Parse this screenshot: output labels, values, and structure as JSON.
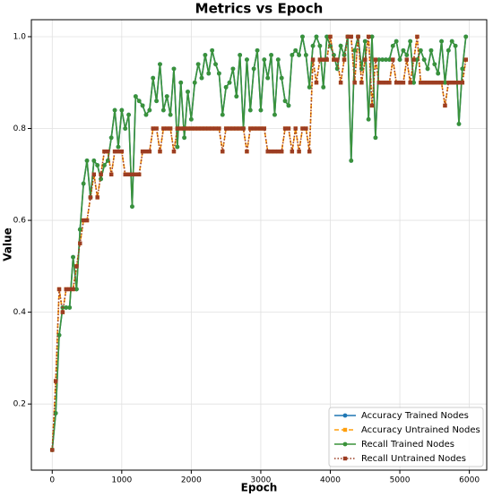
{
  "chart_data": {
    "type": "line",
    "title": "Metrics vs Epoch",
    "x_label": "Epoch",
    "y_label": "Value",
    "grid": true,
    "legend": "lower right",
    "xlim": [
      -300,
      6250
    ],
    "ylim": [
      0.056,
      1.037
    ],
    "xticks": [
      0,
      1000,
      2000,
      3000,
      4000,
      5000,
      6000
    ],
    "yticks": [
      0.2,
      0.4,
      0.6,
      0.8,
      {
        "value": 1,
        "label": "1.0"
      }
    ],
    "x": [
      0,
      50,
      100,
      150,
      200,
      250,
      300,
      350,
      400,
      450,
      500,
      550,
      600,
      650,
      700,
      750,
      800,
      850,
      900,
      950,
      1000,
      1050,
      1100,
      1150,
      1200,
      1250,
      1300,
      1350,
      1400,
      1450,
      1500,
      1550,
      1600,
      1650,
      1700,
      1750,
      1800,
      1850,
      1900,
      1950,
      2000,
      2050,
      2100,
      2150,
      2200,
      2250,
      2300,
      2350,
      2400,
      2450,
      2500,
      2550,
      2600,
      2650,
      2700,
      2750,
      2800,
      2850,
      2900,
      2950,
      3000,
      3050,
      3100,
      3150,
      3200,
      3250,
      3300,
      3350,
      3400,
      3450,
      3500,
      3550,
      3600,
      3650,
      3700,
      3750,
      3800,
      3850,
      3900,
      3950,
      4000,
      4050,
      4100,
      4150,
      4200,
      4250,
      4300,
      4350,
      4400,
      4450,
      4500,
      4550,
      4600,
      4650,
      4700,
      4750,
      4800,
      4850,
      4900,
      4950,
      5000,
      5050,
      5100,
      5150,
      5200,
      5250,
      5300,
      5350,
      5400,
      5450,
      5500,
      5550,
      5600,
      5650,
      5700,
      5750,
      5800,
      5850,
      5900,
      5950
    ],
    "series": [
      {
        "name": "Accuracy Trained Nodes",
        "color": "#1f77b4",
        "dash": "solid",
        "marker": "circle",
        "values": [
          0.1,
          0.18,
          0.35,
          0.41,
          0.41,
          0.41,
          0.52,
          0.45,
          0.58,
          0.68,
          0.73,
          0.65,
          0.73,
          0.72,
          0.69,
          0.72,
          0.73,
          0.78,
          0.84,
          0.76,
          0.84,
          0.8,
          0.83,
          0.63,
          0.87,
          0.86,
          0.85,
          0.83,
          0.84,
          0.91,
          0.86,
          0.94,
          0.84,
          0.87,
          0.83,
          0.93,
          0.76,
          0.9,
          0.78,
          0.88,
          0.82,
          0.9,
          0.94,
          0.91,
          0.96,
          0.92,
          0.97,
          0.94,
          0.92,
          0.83,
          0.89,
          0.9,
          0.93,
          0.87,
          0.96,
          0.8,
          0.95,
          0.84,
          0.93,
          0.97,
          0.84,
          0.95,
          0.91,
          0.96,
          0.83,
          0.95,
          0.91,
          0.86,
          0.85,
          0.96,
          0.97,
          0.96,
          1.0,
          0.96,
          0.89,
          0.98,
          1.0,
          0.98,
          0.89,
          1.0,
          0.98,
          0.96,
          0.93,
          0.98,
          0.96,
          1.0,
          0.73,
          0.97,
          1.0,
          0.93,
          0.99,
          0.82,
          1.0,
          0.78,
          0.95,
          0.95,
          0.95,
          0.95,
          0.98,
          0.99,
          0.95,
          0.97,
          0.96,
          0.99,
          0.9,
          0.95,
          0.97,
          0.95,
          0.93,
          0.97,
          0.94,
          0.92,
          0.99,
          0.9,
          0.97,
          0.99,
          0.98,
          0.81,
          0.93,
          1.0
        ]
      },
      {
        "name": "Accuracy Untrained Nodes",
        "color": "#ff9f0e",
        "dash": "dashed",
        "marker": "square",
        "values": [
          0.1,
          0.25,
          0.45,
          0.4,
          0.45,
          0.45,
          0.45,
          0.5,
          0.55,
          0.6,
          0.6,
          0.65,
          0.7,
          0.65,
          0.7,
          0.75,
          0.75,
          0.7,
          0.75,
          0.75,
          0.75,
          0.7,
          0.7,
          0.7,
          0.7,
          0.7,
          0.75,
          0.75,
          0.75,
          0.8,
          0.8,
          0.75,
          0.8,
          0.8,
          0.8,
          0.75,
          0.8,
          0.8,
          0.8,
          0.8,
          0.8,
          0.8,
          0.8,
          0.8,
          0.8,
          0.8,
          0.8,
          0.8,
          0.8,
          0.75,
          0.8,
          0.8,
          0.8,
          0.8,
          0.8,
          0.8,
          0.75,
          0.8,
          0.8,
          0.8,
          0.8,
          0.8,
          0.75,
          0.75,
          0.75,
          0.75,
          0.75,
          0.8,
          0.8,
          0.75,
          0.8,
          0.75,
          0.8,
          0.8,
          0.75,
          0.95,
          0.9,
          0.95,
          0.95,
          0.95,
          1.0,
          0.95,
          0.95,
          0.9,
          0.95,
          1.0,
          1.0,
          0.9,
          1.0,
          0.9,
          0.95,
          1.0,
          0.85,
          0.95,
          0.9,
          0.9,
          0.9,
          0.9,
          0.95,
          0.9,
          0.9,
          0.9,
          0.95,
          0.9,
          0.95,
          1.0,
          0.9,
          0.9,
          0.9,
          0.9,
          0.9,
          0.9,
          0.9,
          0.85,
          0.9,
          0.9,
          0.9,
          0.9,
          0.9,
          0.95
        ]
      },
      {
        "name": "Recall Trained Nodes",
        "color": "#3a923a",
        "dash": "solid",
        "marker": "circle",
        "values": [
          0.1,
          0.18,
          0.35,
          0.41,
          0.41,
          0.41,
          0.52,
          0.45,
          0.58,
          0.68,
          0.73,
          0.65,
          0.73,
          0.72,
          0.69,
          0.72,
          0.73,
          0.78,
          0.84,
          0.76,
          0.84,
          0.8,
          0.83,
          0.63,
          0.87,
          0.86,
          0.85,
          0.83,
          0.84,
          0.91,
          0.86,
          0.94,
          0.84,
          0.87,
          0.83,
          0.93,
          0.76,
          0.9,
          0.78,
          0.88,
          0.82,
          0.9,
          0.94,
          0.91,
          0.96,
          0.92,
          0.97,
          0.94,
          0.92,
          0.83,
          0.89,
          0.9,
          0.93,
          0.87,
          0.96,
          0.8,
          0.95,
          0.84,
          0.93,
          0.97,
          0.84,
          0.95,
          0.91,
          0.96,
          0.83,
          0.95,
          0.91,
          0.86,
          0.85,
          0.96,
          0.97,
          0.96,
          1.0,
          0.96,
          0.89,
          0.98,
          1.0,
          0.98,
          0.89,
          1.0,
          0.98,
          0.96,
          0.93,
          0.98,
          0.96,
          1.0,
          0.73,
          0.97,
          1.0,
          0.93,
          0.99,
          0.82,
          1.0,
          0.78,
          0.95,
          0.95,
          0.95,
          0.95,
          0.98,
          0.99,
          0.95,
          0.97,
          0.96,
          0.99,
          0.9,
          0.95,
          0.97,
          0.95,
          0.93,
          0.97,
          0.94,
          0.92,
          0.99,
          0.9,
          0.97,
          0.99,
          0.98,
          0.81,
          0.93,
          1.0
        ]
      },
      {
        "name": "Recall Untrained Nodes",
        "color": "#9c3d23",
        "dash": "dotted",
        "marker": "square",
        "values": [
          0.1,
          0.25,
          0.45,
          0.4,
          0.45,
          0.45,
          0.45,
          0.5,
          0.55,
          0.6,
          0.6,
          0.65,
          0.7,
          0.65,
          0.7,
          0.75,
          0.75,
          0.7,
          0.75,
          0.75,
          0.75,
          0.7,
          0.7,
          0.7,
          0.7,
          0.7,
          0.75,
          0.75,
          0.75,
          0.8,
          0.8,
          0.75,
          0.8,
          0.8,
          0.8,
          0.75,
          0.8,
          0.8,
          0.8,
          0.8,
          0.8,
          0.8,
          0.8,
          0.8,
          0.8,
          0.8,
          0.8,
          0.8,
          0.8,
          0.75,
          0.8,
          0.8,
          0.8,
          0.8,
          0.8,
          0.8,
          0.75,
          0.8,
          0.8,
          0.8,
          0.8,
          0.8,
          0.75,
          0.75,
          0.75,
          0.75,
          0.75,
          0.8,
          0.8,
          0.75,
          0.8,
          0.75,
          0.8,
          0.8,
          0.75,
          0.95,
          0.9,
          0.95,
          0.95,
          0.95,
          1.0,
          0.95,
          0.95,
          0.9,
          0.95,
          1.0,
          1.0,
          0.9,
          1.0,
          0.9,
          0.95,
          1.0,
          0.85,
          0.95,
          0.9,
          0.9,
          0.9,
          0.9,
          0.95,
          0.9,
          0.9,
          0.9,
          0.95,
          0.9,
          0.95,
          1.0,
          0.9,
          0.9,
          0.9,
          0.9,
          0.9,
          0.9,
          0.9,
          0.85,
          0.9,
          0.9,
          0.9,
          0.9,
          0.9,
          0.95
        ]
      }
    ]
  }
}
